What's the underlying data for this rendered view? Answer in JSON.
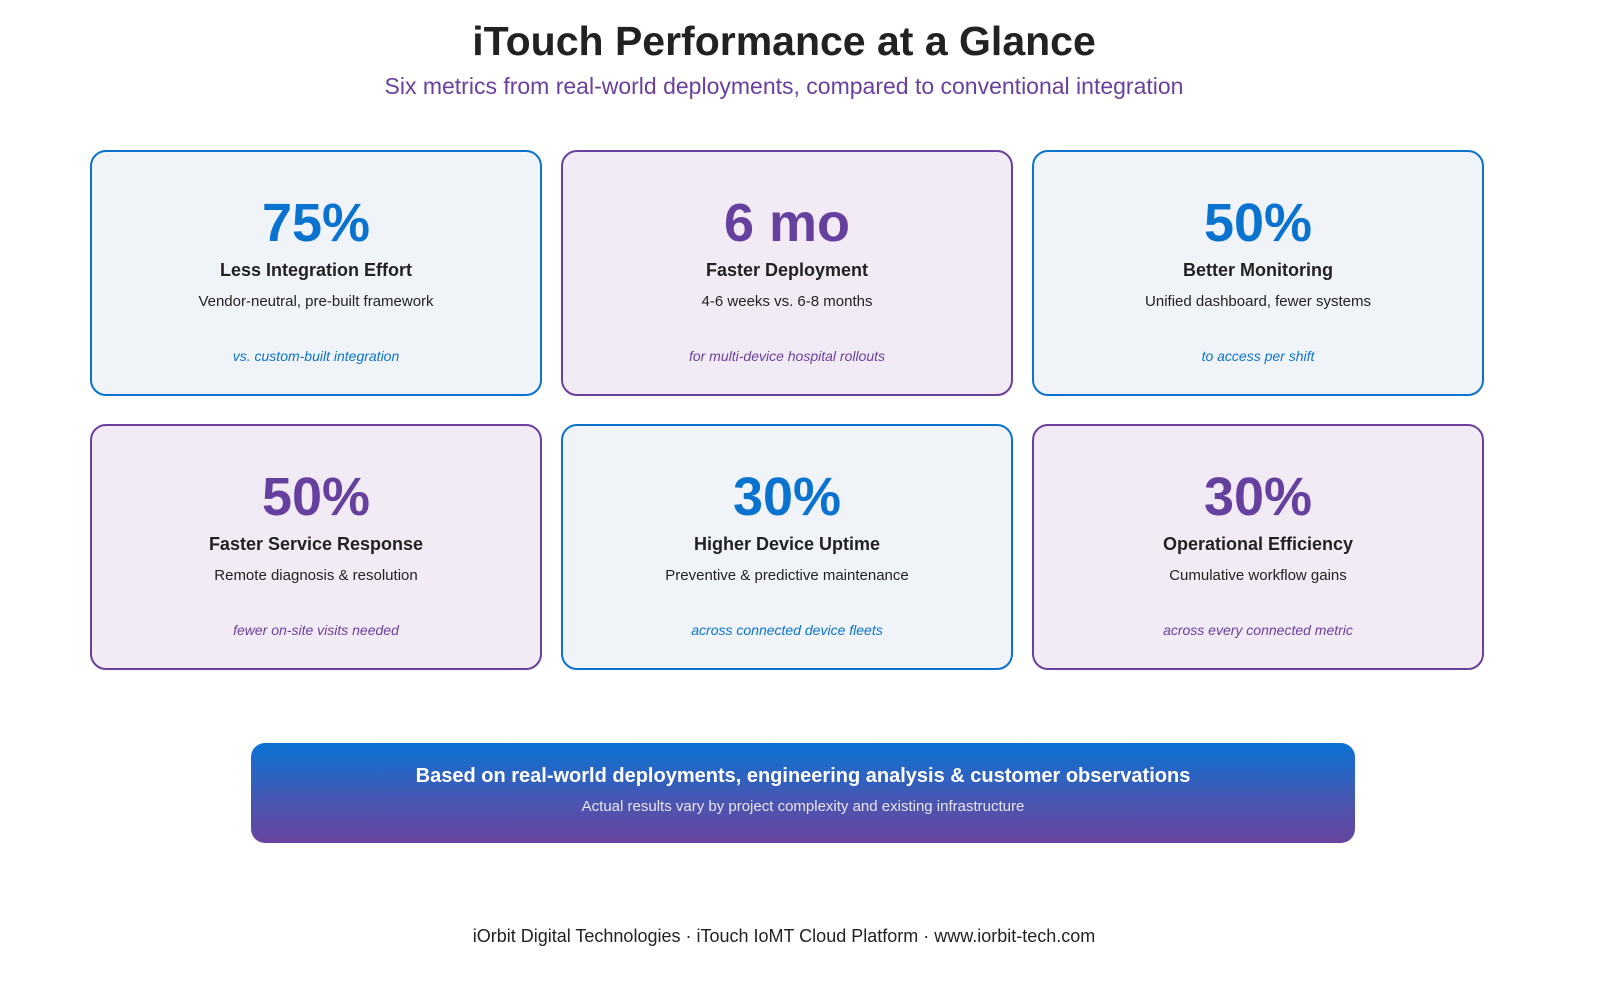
{
  "header": {
    "title": "iTouch Performance at a Glance",
    "subtitle": "Six metrics from real-world deployments, compared to conventional integration"
  },
  "colors": {
    "blue_accent": "#0a73cf",
    "purple_accent": "#6a3f9e",
    "blue_card_bg": "#f0f4f9",
    "purple_card_bg": "#f2ebf5"
  },
  "metrics": [
    {
      "value": "75%",
      "label": "Less Integration Effort",
      "desc": "Vendor-neutral, pre-built framework",
      "note": "vs. custom-built integration",
      "theme": "blue"
    },
    {
      "value": "6 mo",
      "label": "Faster Deployment",
      "desc": "4-6 weeks vs. 6-8 months",
      "note": "for multi-device hospital rollouts",
      "theme": "purple"
    },
    {
      "value": "50%",
      "label": "Better Monitoring",
      "desc": "Unified dashboard, fewer systems",
      "note": "to access per shift",
      "theme": "blue"
    },
    {
      "value": "50%",
      "label": "Faster Service Response",
      "desc": "Remote diagnosis & resolution",
      "note": "fewer on-site visits needed",
      "theme": "purple"
    },
    {
      "value": "30%",
      "label": "Higher Device Uptime",
      "desc": "Preventive & predictive maintenance",
      "note": "across connected device fleets",
      "theme": "blue"
    },
    {
      "value": "30%",
      "label": "Operational Efficiency",
      "desc": "Cumulative workflow gains",
      "note": "across every connected metric",
      "theme": "purple"
    }
  ],
  "banner": {
    "headline": "Based on real-world deployments, engineering analysis & customer observations",
    "sub": "Actual results vary by project complexity and existing infrastructure"
  },
  "footer": {
    "text": "iOrbit Digital Technologies · iTouch IoMT Cloud Platform · www.iorbit-tech.com"
  }
}
